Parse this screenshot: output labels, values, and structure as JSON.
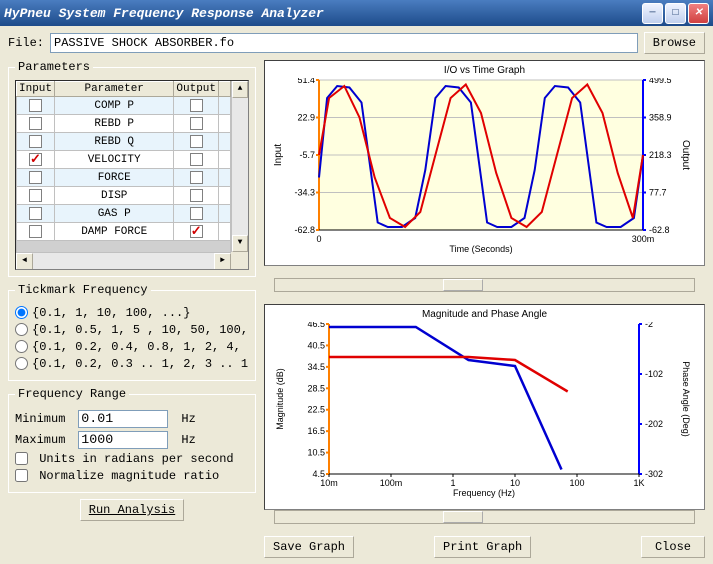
{
  "window": {
    "title": "HyPneu System Frequency Response Analyzer"
  },
  "file": {
    "label": "File:",
    "value": "PASSIVE SHOCK ABSORBER.fo",
    "browse": "Browse"
  },
  "parameters": {
    "legend": "Parameters",
    "columns": [
      "Input",
      "Parameter",
      "Output"
    ],
    "rows": [
      {
        "input": false,
        "name": "COMP P",
        "output": false
      },
      {
        "input": false,
        "name": "REBD P",
        "output": false
      },
      {
        "input": false,
        "name": "REBD Q",
        "output": false
      },
      {
        "input": true,
        "name": "VELOCITY",
        "output": false
      },
      {
        "input": false,
        "name": "FORCE",
        "output": false
      },
      {
        "input": false,
        "name": "DISP",
        "output": false
      },
      {
        "input": false,
        "name": "GAS P",
        "output": false
      },
      {
        "input": false,
        "name": "DAMP FORCE",
        "output": true
      }
    ]
  },
  "tickmark": {
    "legend": "Tickmark Frequency",
    "options": [
      "{0.1, 1, 10, 100, ...}",
      "{0.1, 0.5, 1, 5 , 10, 50, 100,",
      "{0.1, 0.2, 0.4, 0.8, 1, 2, 4,",
      "{0.1, 0.2, 0.3 .. 1, 2, 3 .. 1"
    ],
    "selected": 0
  },
  "frequency_range": {
    "legend": "Frequency Range",
    "min_label": "Minimum",
    "min_value": "0.01",
    "max_label": "Maximum",
    "max_value": "1000",
    "unit": "Hz",
    "radians_label": "Units in radians per second",
    "normalize_label": "Normalize magnitude ratio"
  },
  "buttons": {
    "run": "Run Analysis",
    "save": "Save Graph",
    "print": "Print Graph",
    "close": "Close"
  },
  "chart1": {
    "title": "I/O vs Time Graph",
    "ylabel_left": "Input",
    "ylabel_right": "Output",
    "xlabel": "Time (Seconds)",
    "left_ticks": [
      "51.4",
      "22.9",
      "-5.7",
      "-34.3",
      "-62.8"
    ],
    "right_ticks": [
      "499.5",
      "358.9",
      "218.3",
      "77.7",
      "-62.8"
    ],
    "x_ticks": [
      "0",
      "300m"
    ],
    "left_color": "#ff8000",
    "right_color": "#0000ff",
    "bg_color": "#ffffe0",
    "grid_color": "#c0c0c0",
    "series_red": {
      "color": "#e00000",
      "points": [
        [
          0,
          0.5
        ],
        [
          10,
          0.88
        ],
        [
          25,
          0.96
        ],
        [
          40,
          0.75
        ],
        [
          55,
          0.35
        ],
        [
          70,
          0.08
        ],
        [
          85,
          0.02
        ],
        [
          100,
          0.12
        ],
        [
          115,
          0.5
        ],
        [
          130,
          0.88
        ],
        [
          145,
          0.97
        ],
        [
          160,
          0.78
        ],
        [
          175,
          0.38
        ],
        [
          190,
          0.08
        ],
        [
          205,
          0.02
        ],
        [
          220,
          0.12
        ],
        [
          235,
          0.5
        ],
        [
          250,
          0.88
        ],
        [
          265,
          0.97
        ],
        [
          280,
          0.78
        ],
        [
          295,
          0.38
        ],
        [
          310,
          0.08
        ],
        [
          320,
          0.5
        ]
      ]
    },
    "series_blue": {
      "color": "#0000d0",
      "points": [
        [
          0,
          0.35
        ],
        [
          8,
          0.88
        ],
        [
          18,
          0.96
        ],
        [
          30,
          0.95
        ],
        [
          42,
          0.85
        ],
        [
          50,
          0.45
        ],
        [
          58,
          0.05
        ],
        [
          68,
          0.02
        ],
        [
          82,
          0.02
        ],
        [
          95,
          0.08
        ],
        [
          105,
          0.4
        ],
        [
          115,
          0.88
        ],
        [
          125,
          0.96
        ],
        [
          138,
          0.95
        ],
        [
          150,
          0.85
        ],
        [
          158,
          0.45
        ],
        [
          166,
          0.05
        ],
        [
          176,
          0.02
        ],
        [
          190,
          0.02
        ],
        [
          203,
          0.08
        ],
        [
          213,
          0.4
        ],
        [
          223,
          0.88
        ],
        [
          233,
          0.96
        ],
        [
          246,
          0.95
        ],
        [
          258,
          0.85
        ],
        [
          266,
          0.45
        ],
        [
          274,
          0.05
        ],
        [
          284,
          0.02
        ],
        [
          298,
          0.02
        ],
        [
          311,
          0.08
        ],
        [
          320,
          0.5
        ]
      ]
    }
  },
  "chart2": {
    "title": "Magnitude and Phase Angle",
    "ylabel_left": "Magnitude (dB)",
    "ylabel_right": "Phase Angle (Deg)",
    "xlabel": "Frequency (Hz)",
    "left_ticks": [
      "46.5",
      "40.5",
      "34.5",
      "28.5",
      "22.5",
      "16.5",
      "10.5",
      "4.5"
    ],
    "right_ticks": [
      "-2",
      "-102",
      "-202",
      "-302"
    ],
    "x_ticks": [
      "10m",
      "100m",
      "1",
      "10",
      "100",
      "1K"
    ],
    "left_color": "#ff8000",
    "right_color": "#0000ff",
    "bg_color": "#ffffff",
    "series_red": {
      "color": "#e00000",
      "points": [
        [
          0,
          0.78
        ],
        [
          0.45,
          0.78
        ],
        [
          0.6,
          0.76
        ],
        [
          0.77,
          0.55
        ]
      ]
    },
    "series_blue": {
      "color": "#0000d0",
      "points": [
        [
          0,
          0.98
        ],
        [
          0.28,
          0.98
        ],
        [
          0.45,
          0.76
        ],
        [
          0.6,
          0.72
        ],
        [
          0.75,
          0.03
        ]
      ]
    }
  }
}
